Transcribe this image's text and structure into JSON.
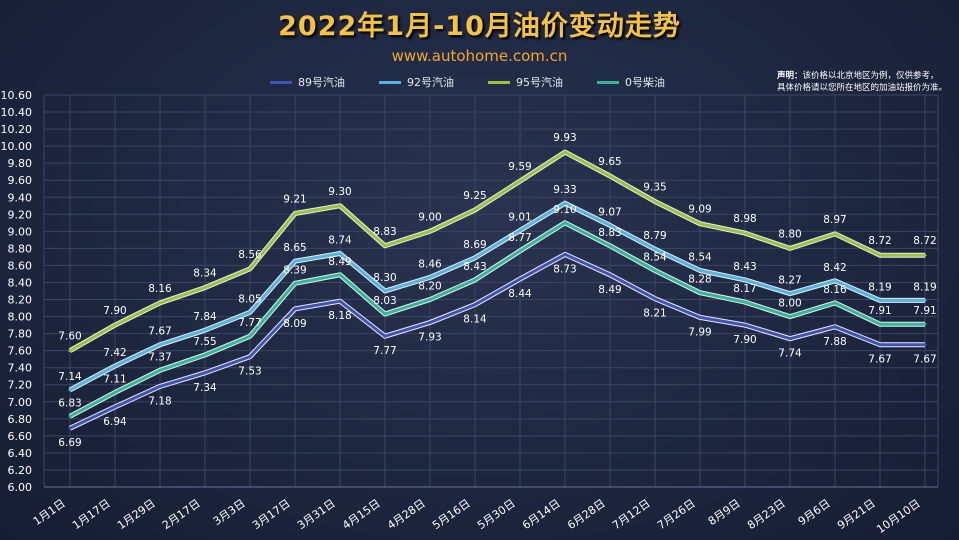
{
  "title": "2022年1月-10月油价变动走势",
  "subtitle": "www.autohome.com.cn",
  "note": {
    "label": "声明：",
    "text_line1": "该价格以北京地区为例，仅供参考，",
    "text_line2": "具体价格请以您所在地区的加油站报价为准。"
  },
  "colors": {
    "s89": "#3e52b8",
    "s92": "#52b4e0",
    "s95": "#98c43c",
    "s0": "#2fb898",
    "grid": "#3c4562",
    "text": "#ffffff"
  },
  "chart_data": {
    "type": "line",
    "categories": [
      "1月1日",
      "1月17日",
      "1月29日",
      "2月17日",
      "3月3日",
      "3月17日",
      "3月31日",
      "4月15日",
      "4月28日",
      "5月16日",
      "5月30日",
      "6月14日",
      "6月28日",
      "7月12日",
      "7月26日",
      "8月9日",
      "8月23日",
      "9月6日",
      "9月21日",
      "10月10日"
    ],
    "ylim": [
      6.0,
      10.6
    ],
    "ytick_step": 0.2,
    "grid": true,
    "legend_position": "top",
    "series": [
      {
        "name": "89号汽油",
        "values": [
          6.69,
          6.94,
          7.18,
          7.34,
          7.53,
          8.09,
          8.18,
          7.77,
          7.93,
          8.14,
          8.44,
          8.73,
          8.49,
          8.21,
          7.99,
          7.9,
          7.74,
          7.88,
          7.67,
          7.67
        ]
      },
      {
        "name": "92号汽油",
        "values": [
          7.14,
          7.42,
          7.67,
          7.84,
          8.05,
          8.65,
          8.74,
          8.3,
          8.46,
          8.69,
          9.01,
          9.33,
          9.07,
          8.79,
          8.54,
          8.43,
          8.27,
          8.42,
          8.19,
          8.19
        ]
      },
      {
        "name": "95号汽油",
        "values": [
          7.6,
          7.9,
          8.16,
          8.34,
          8.56,
          9.21,
          9.3,
          8.83,
          9.0,
          9.25,
          9.59,
          9.93,
          9.65,
          9.35,
          9.09,
          8.98,
          8.8,
          8.97,
          8.72,
          8.72
        ]
      },
      {
        "name": "0号柴油",
        "values": [
          6.83,
          7.11,
          7.37,
          7.55,
          7.77,
          8.39,
          8.49,
          8.03,
          8.2,
          8.43,
          8.77,
          9.1,
          8.83,
          8.54,
          8.28,
          8.17,
          8.0,
          8.16,
          7.91,
          7.91
        ]
      }
    ]
  }
}
